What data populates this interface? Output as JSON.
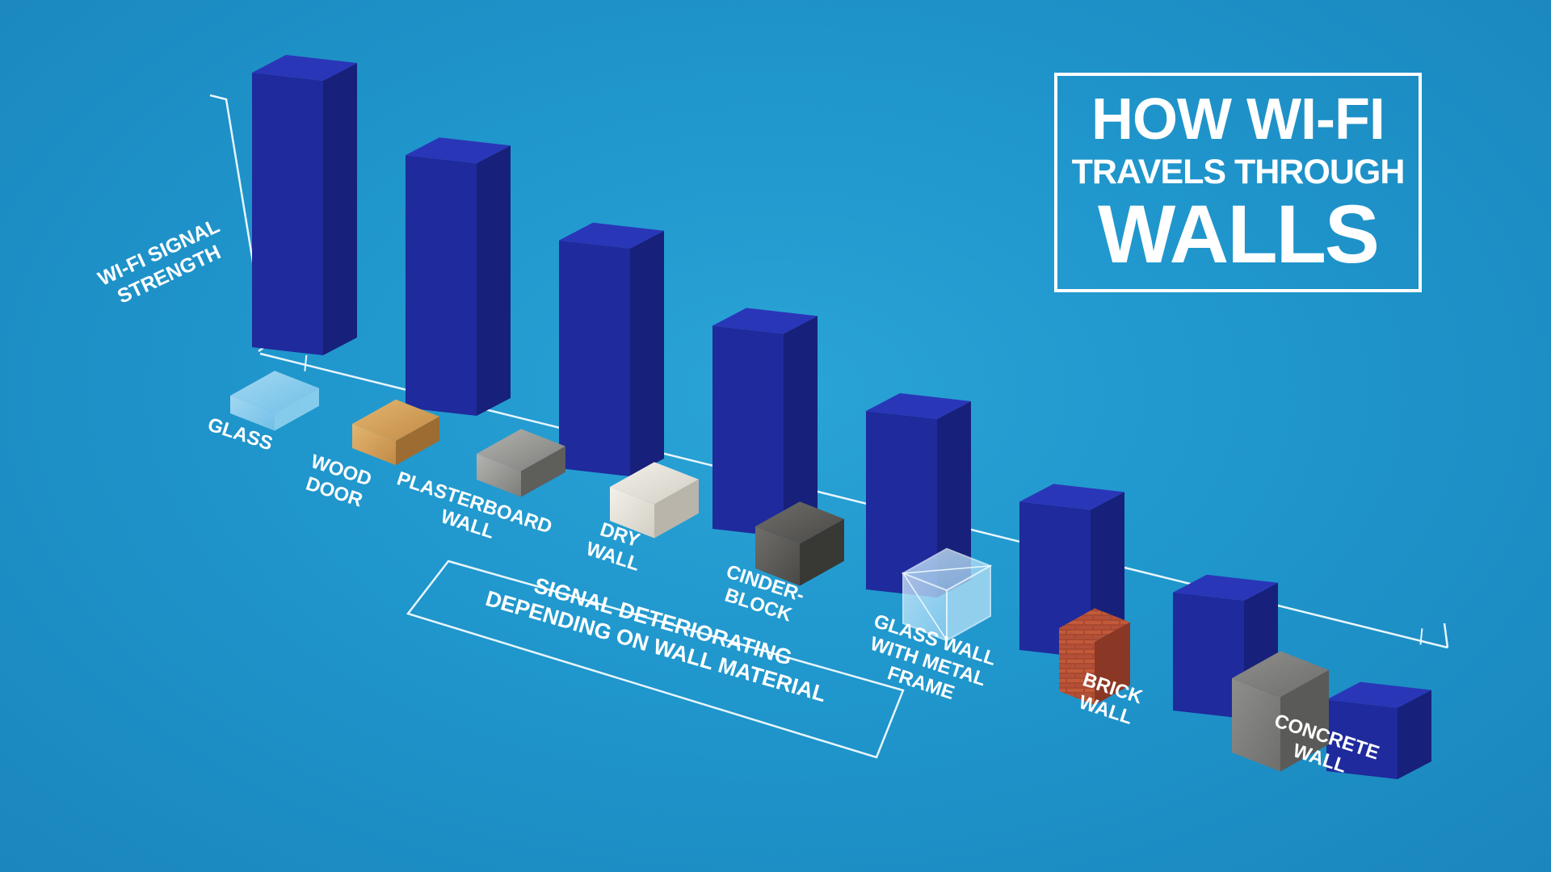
{
  "title": {
    "line1": "HOW WI-FI",
    "line2": "TRAVELS THROUGH",
    "line3": "WALLS"
  },
  "axis_label": {
    "line1": "WI-FI SIGNAL",
    "line2": "STRENGTH"
  },
  "annotation": {
    "line1": "SIGNAL DETERIORATING",
    "line2": "DEPENDING ON WALL MATERIAL"
  },
  "colors": {
    "bar_front": "#1f2a9c",
    "bar_side": "#17207a",
    "bar_top": "#2a36b8",
    "line": "#e8f6ff",
    "background": "#1f96cc"
  },
  "chart_data": {
    "type": "bar",
    "categories": [
      "GLASS",
      "WOOD DOOR",
      "PLASTERBOARD WALL",
      "DRY WALL",
      "CINDER-BLOCK",
      "GLASS WALL WITH METAL FRAME",
      "BRICK WALL",
      "CONCRETE WALL"
    ],
    "category_lines": [
      [
        "GLASS"
      ],
      [
        "WOOD",
        "DOOR"
      ],
      [
        "PLASTERBOARD",
        "WALL"
      ],
      [
        "DRY",
        "WALL"
      ],
      [
        "CINDER-",
        "BLOCK"
      ],
      [
        "GLASS WALL",
        "WITH METAL",
        "FRAME"
      ],
      [
        "BRICK",
        "WALL"
      ],
      [
        "CONCRETE",
        "WALL"
      ]
    ],
    "materials": [
      "glass",
      "wood",
      "plasterboard",
      "drywall",
      "cinderblock",
      "glass-metal",
      "brick",
      "concrete"
    ],
    "values": [
      100,
      92,
      83,
      74,
      65,
      54,
      43,
      26
    ],
    "ylabel": "WI-FI SIGNAL STRENGTH",
    "ylim": [
      0,
      100
    ],
    "grid": false
  }
}
